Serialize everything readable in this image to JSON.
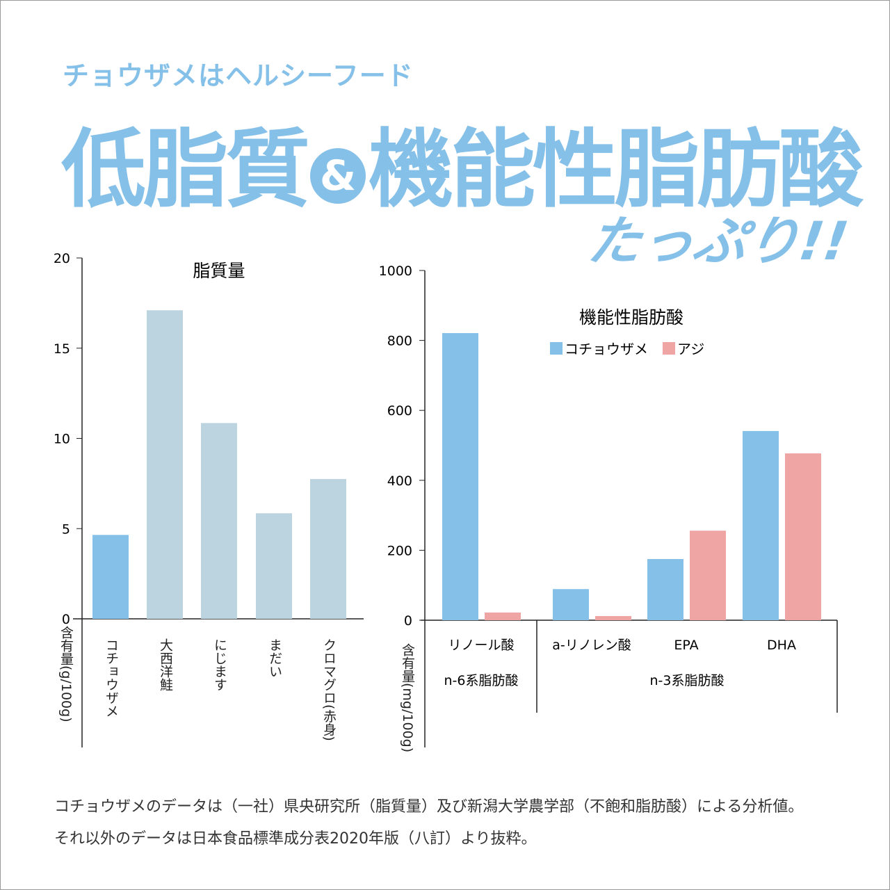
{
  "header": {
    "subtitle": "チョウザメはヘルシーフード",
    "title_part1": "低脂質",
    "title_amp": "&",
    "title_part2": "機能性脂肪酸",
    "tagline": "たっぷり!!"
  },
  "colors": {
    "accent": "#85c0e9",
    "other_fish": "#bcd3e0",
    "aji": "#f0a5a5"
  },
  "chart_data": [
    {
      "type": "bar",
      "title": "脂質量",
      "ylabel": "含有量(g/100g)",
      "ylim": [
        0,
        20
      ],
      "yticks": [
        0,
        5,
        10,
        15,
        20
      ],
      "categories": [
        "コチョウザメ",
        "大西洋鮭",
        "にじます",
        "まだい",
        "クロマグロ(赤身)"
      ],
      "values": [
        4.65,
        17.1,
        10.85,
        5.85,
        7.75
      ],
      "highlight": [
        true,
        false,
        false,
        false,
        false
      ]
    },
    {
      "type": "bar",
      "title": "機能性脂肪酸",
      "ylabel": "含有量(mg/100g)",
      "ylim": [
        0,
        1000
      ],
      "yticks": [
        0,
        200,
        400,
        600,
        800,
        1000
      ],
      "categories": [
        "リノール酸",
        "a-リノレン酸",
        "EPA",
        "DHA"
      ],
      "groups": [
        {
          "label": "n-6系脂肪酸",
          "categories": [
            "リノール酸"
          ]
        },
        {
          "label": "n-3系脂肪酸",
          "categories": [
            "a-リノレン酸",
            "EPA",
            "DHA"
          ]
        }
      ],
      "legend_position": "top-center",
      "series": [
        {
          "name": "コチョウザメ",
          "values": [
            821,
            89,
            175,
            541
          ]
        },
        {
          "name": "アジ",
          "values": [
            22,
            12,
            256,
            477
          ]
        }
      ]
    }
  ],
  "footer": {
    "line1": "コチョウザメのデータは（一社）県央研究所（脂質量）及び新潟大学農学部（不飽和脂肪酸）による分析値。",
    "line2": "それ以外のデータは日本食品標準成分表2020年版（八訂）より抜粋。"
  }
}
